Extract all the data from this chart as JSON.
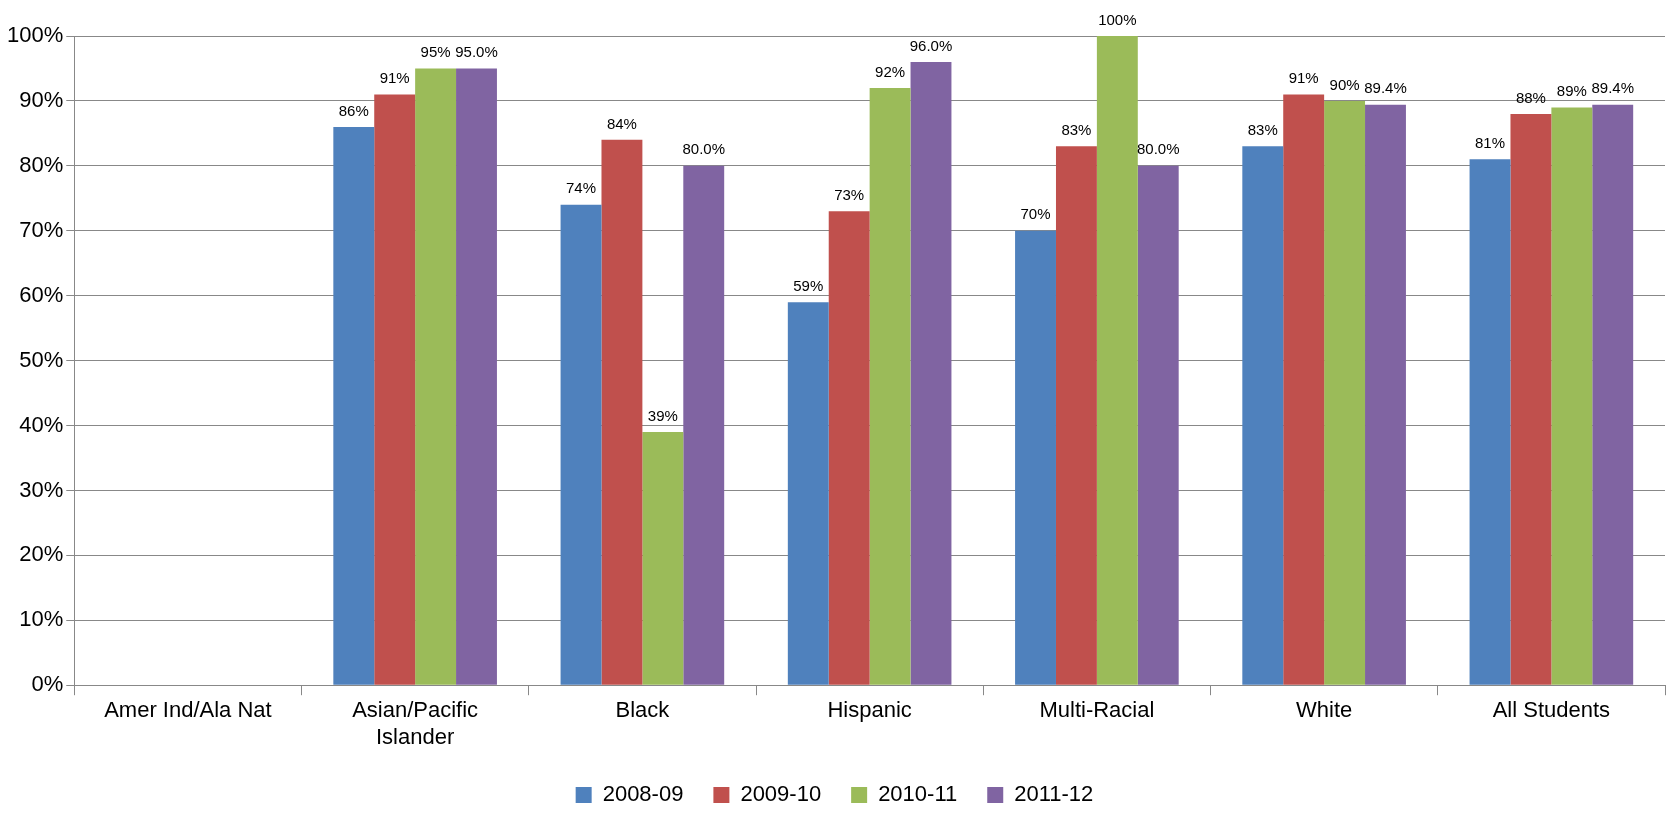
{
  "chart_data": {
    "type": "bar",
    "categories": [
      "Amer Ind/Ala Nat",
      "Asian/Pacific Islander",
      "Black",
      "Hispanic",
      "Multi-Racial",
      "White",
      "All Students"
    ],
    "series": [
      {
        "name": "2008-09",
        "color": "#4f81bd",
        "values": [
          null,
          86,
          74,
          59,
          70,
          83,
          81
        ],
        "value_labels": [
          null,
          "86%",
          "74%",
          "59%",
          "70%",
          "83%",
          "81%"
        ]
      },
      {
        "name": "2009-10",
        "color": "#c0504d",
        "values": [
          null,
          91,
          84,
          73,
          83,
          91,
          88
        ],
        "value_labels": [
          null,
          "91%",
          "84%",
          "73%",
          "83%",
          "91%",
          "88%"
        ]
      },
      {
        "name": "2010-11",
        "color": "#9bbb59",
        "values": [
          null,
          95,
          39,
          92,
          100,
          90,
          89
        ],
        "value_labels": [
          null,
          "95%",
          "39%",
          "92%",
          "100%",
          "90%",
          "89%"
        ]
      },
      {
        "name": "2011-12",
        "color": "#8064a2",
        "values": [
          null,
          95.0,
          80.0,
          96.0,
          80.0,
          89.4,
          89.4
        ],
        "value_labels": [
          null,
          "95.0%",
          "80.0%",
          "96.0%",
          "80.0%",
          "89.4%",
          "89.4%"
        ]
      }
    ],
    "ylim": [
      0,
      100
    ],
    "yticks": [
      {
        "value": 0,
        "label": "0%"
      },
      {
        "value": 10,
        "label": "10%"
      },
      {
        "value": 20,
        "label": "20%"
      },
      {
        "value": 30,
        "label": "30%"
      },
      {
        "value": 40,
        "label": "40%"
      },
      {
        "value": 50,
        "label": "50%"
      },
      {
        "value": 60,
        "label": "60%"
      },
      {
        "value": 70,
        "label": "70%"
      },
      {
        "value": 80,
        "label": "80%"
      },
      {
        "value": 90,
        "label": "90%"
      },
      {
        "value": 100,
        "label": "100%"
      }
    ],
    "grid": "y",
    "legend": "bottom"
  }
}
